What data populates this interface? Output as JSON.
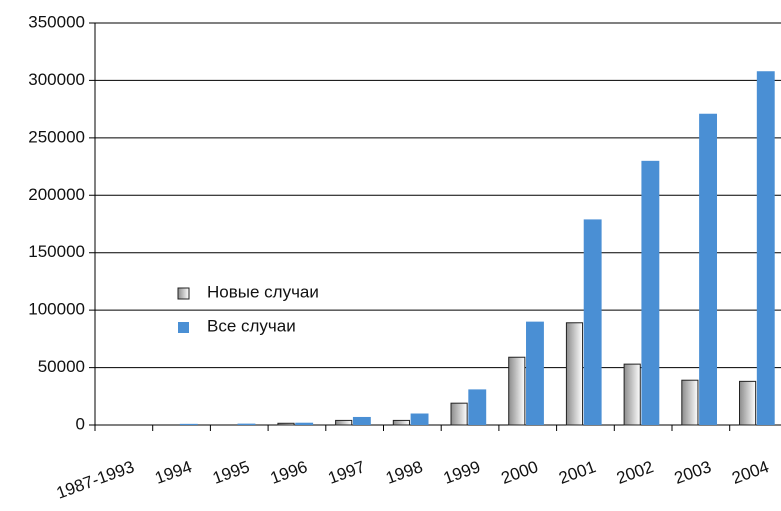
{
  "chart_data": {
    "type": "bar",
    "categories": [
      "1987-1993",
      "1994",
      "1995",
      "1996",
      "1997",
      "1998",
      "1999",
      "2000",
      "2001",
      "2002",
      "2003",
      "2004"
    ],
    "series": [
      {
        "name": "Новые случаи",
        "color": "#8c8c8c",
        "values": [
          0,
          0,
          0,
          1500,
          4000,
          4000,
          19000,
          59000,
          89000,
          53000,
          39000,
          38000
        ]
      },
      {
        "name": "Все случаи",
        "color": "#4a8fd4",
        "values": [
          0,
          1000,
          1200,
          2000,
          7000,
          10000,
          31000,
          90000,
          179000,
          230000,
          271000,
          308000
        ]
      }
    ],
    "ylim": [
      0,
      350000
    ],
    "yticks": [
      0,
      50000,
      100000,
      150000,
      200000,
      250000,
      300000,
      350000
    ],
    "grid": true
  }
}
